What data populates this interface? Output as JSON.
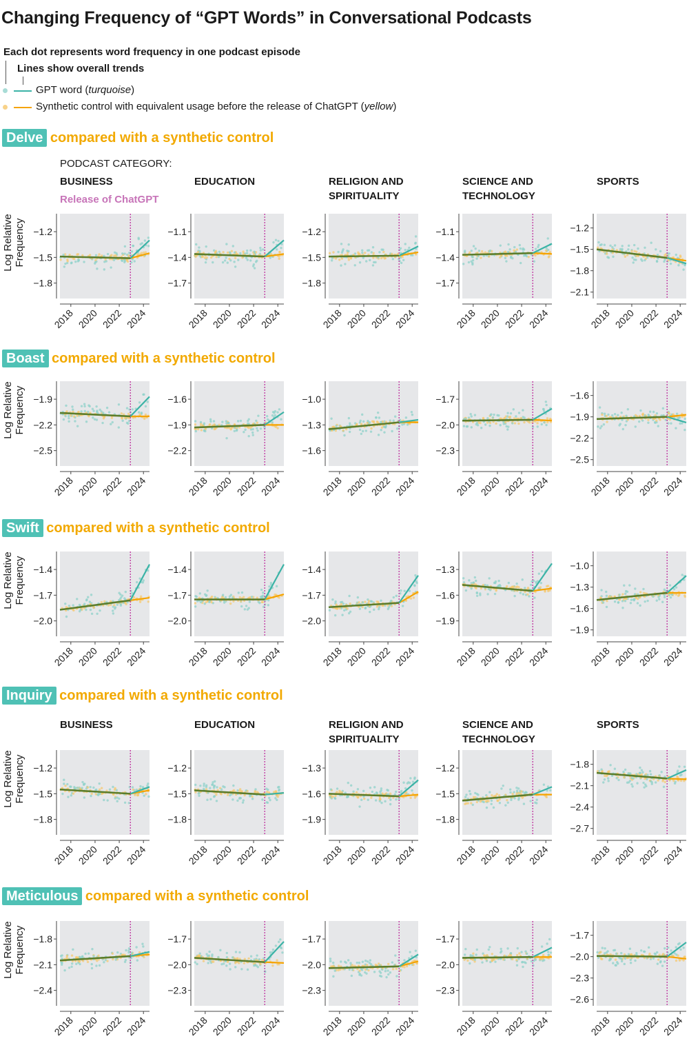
{
  "title": "Changing Frequency of “GPT Words” in Conversational Podcasts",
  "legend": {
    "dots_note": "Each dot represents word frequency in one podcast episode",
    "lines_note": "Lines show overall trends",
    "gpt_label": "GPT word (",
    "gpt_italic": "turquoise",
    "control_label": "Synthetic control with equivalent usage before the release of ChatGPT (",
    "control_italic": "yellow",
    "close_paren": ")"
  },
  "compared_label": "compared with a synthetic control",
  "podcast_category_label": "PODCAST CATEGORY:",
  "release_label": "Release of ChatGPT",
  "colors": {
    "gpt": "#3bb3a6",
    "control": "#f5a300",
    "overlap": "#5c7d2c",
    "release": "#c447a8",
    "panel_bg": "#e6e7e9",
    "badge": "#4fc1b5"
  },
  "chart_data": {
    "type": "scatter",
    "ylabel": "Log Relative Frequency",
    "xlim": [
      2017.1,
      2024.5
    ],
    "xticks": [
      "2018",
      "2020",
      "2022",
      "2024"
    ],
    "release_x": 2022.92,
    "grid": false,
    "categories": [
      "BUSINESS",
      "EDUCATION",
      "RELIGION AND SPIRITUALITY",
      "SCIENCE AND TECHNOLOGY",
      "SPORTS"
    ],
    "trend_fields": [
      "start",
      "at_release",
      "gpt_end",
      "control_end"
    ],
    "words": [
      {
        "word": "Delve",
        "show_categories": true,
        "panels": [
          {
            "yticks": [
              -1.2,
              -1.5,
              -1.8
            ],
            "ylim": [
              -1.98,
              -0.99
            ],
            "trend": [
              -1.49,
              -1.51,
              -1.3,
              -1.45
            ]
          },
          {
            "yticks": [
              -1.1,
              -1.4,
              -1.7
            ],
            "ylim": [
              -1.88,
              -0.89
            ],
            "trend": [
              -1.36,
              -1.39,
              -1.2,
              -1.36
            ]
          },
          {
            "yticks": [
              -1.2,
              -1.5,
              -1.8
            ],
            "ylim": [
              -1.98,
              -0.99
            ],
            "trend": [
              -1.49,
              -1.48,
              -1.37,
              -1.44
            ]
          },
          {
            "yticks": [
              -1.1,
              -1.4,
              -1.7
            ],
            "ylim": [
              -1.88,
              -0.89
            ],
            "trend": [
              -1.37,
              -1.35,
              -1.24,
              -1.36
            ]
          },
          {
            "yticks": [
              -1.2,
              -1.5,
              -1.8,
              -2.1
            ],
            "ylim": [
              -2.19,
              -1.0
            ],
            "trend": [
              -1.5,
              -1.62,
              -1.7,
              -1.66
            ]
          }
        ]
      },
      {
        "word": "Boast",
        "show_categories": false,
        "panels": [
          {
            "yticks": [
              -1.9,
              -2.2,
              -2.5
            ],
            "ylim": [
              -2.68,
              -1.69
            ],
            "trend": [
              -2.06,
              -2.1,
              -1.87,
              -2.1
            ]
          },
          {
            "yticks": [
              -1.6,
              -1.9,
              -2.2
            ],
            "ylim": [
              -2.38,
              -1.39
            ],
            "trend": [
              -1.93,
              -1.9,
              -1.75,
              -1.9
            ]
          },
          {
            "yticks": [
              -1.0,
              -1.3,
              -1.6
            ],
            "ylim": [
              -1.78,
              -0.79
            ],
            "trend": [
              -1.35,
              -1.27,
              -1.24,
              -1.27
            ]
          },
          {
            "yticks": [
              -1.7,
              -2.0,
              -2.3
            ],
            "ylim": [
              -2.48,
              -1.49
            ],
            "trend": [
              -1.95,
              -1.94,
              -1.81,
              -1.95
            ]
          },
          {
            "yticks": [
              -1.6,
              -1.9,
              -2.2,
              -2.5
            ],
            "ylim": [
              -2.59,
              -1.4
            ],
            "trend": [
              -1.93,
              -1.9,
              -1.98,
              -1.87
            ]
          }
        ]
      },
      {
        "word": "Swift",
        "show_categories": false,
        "panels": [
          {
            "yticks": [
              -1.4,
              -1.7,
              -2.0
            ],
            "ylim": [
              -2.18,
              -1.19
            ],
            "trend": [
              -1.87,
              -1.76,
              -1.34,
              -1.73
            ]
          },
          {
            "yticks": [
              -1.4,
              -1.7,
              -2.0
            ],
            "ylim": [
              -2.18,
              -1.19
            ],
            "trend": [
              -1.75,
              -1.75,
              -1.34,
              -1.69
            ]
          },
          {
            "yticks": [
              -1.4,
              -1.7,
              -2.0
            ],
            "ylim": [
              -2.18,
              -1.19
            ],
            "trend": [
              -1.84,
              -1.79,
              -1.47,
              -1.66
            ]
          },
          {
            "yticks": [
              -1.3,
              -1.6,
              -1.9
            ],
            "ylim": [
              -2.08,
              -1.09
            ],
            "trend": [
              -1.48,
              -1.55,
              -1.23,
              -1.52
            ]
          },
          {
            "yticks": [
              -1.0,
              -1.3,
              -1.6,
              -1.9
            ],
            "ylim": [
              -1.99,
              -0.8
            ],
            "trend": [
              -1.48,
              -1.38,
              -1.14,
              -1.38
            ]
          }
        ]
      },
      {
        "word": "Inquiry",
        "show_categories": true,
        "panels": [
          {
            "yticks": [
              -1.2,
              -1.5,
              -1.8
            ],
            "ylim": [
              -1.98,
              -0.99
            ],
            "trend": [
              -1.45,
              -1.5,
              -1.42,
              -1.46
            ]
          },
          {
            "yticks": [
              -1.2,
              -1.5,
              -1.8
            ],
            "ylim": [
              -1.98,
              -0.99
            ],
            "trend": [
              -1.46,
              -1.51,
              -1.49,
              -1.49
            ]
          },
          {
            "yticks": [
              -1.3,
              -1.6,
              -1.9
            ],
            "ylim": [
              -2.08,
              -1.09
            ],
            "trend": [
              -1.6,
              -1.63,
              -1.44,
              -1.61
            ]
          },
          {
            "yticks": [
              -1.2,
              -1.5,
              -1.8
            ],
            "ylim": [
              -1.98,
              -0.99
            ],
            "trend": [
              -1.58,
              -1.51,
              -1.42,
              -1.51
            ]
          },
          {
            "yticks": [
              -1.8,
              -2.1,
              -2.4,
              -2.7
            ],
            "ylim": [
              -2.79,
              -1.6
            ],
            "trend": [
              -1.92,
              -2.0,
              -1.88,
              -2.01
            ]
          }
        ]
      },
      {
        "word": "Meticulous",
        "show_categories": false,
        "panels": [
          {
            "yticks": [
              -1.8,
              -2.1,
              -2.4
            ],
            "ylim": [
              -2.58,
              -1.59
            ],
            "trend": [
              -2.05,
              -2.0,
              -1.95,
              -1.98
            ]
          },
          {
            "yticks": [
              -1.7,
              -2.0,
              -2.3
            ],
            "ylim": [
              -2.48,
              -1.49
            ],
            "trend": [
              -1.92,
              -1.97,
              -1.73,
              -1.98
            ]
          },
          {
            "yticks": [
              -1.7,
              -2.0,
              -2.3
            ],
            "ylim": [
              -2.48,
              -1.49
            ],
            "trend": [
              -2.04,
              -2.02,
              -1.88,
              -1.96
            ]
          },
          {
            "yticks": [
              -1.7,
              -2.0,
              -2.3
            ],
            "ylim": [
              -2.48,
              -1.49
            ],
            "trend": [
              -1.92,
              -1.91,
              -1.8,
              -1.91
            ]
          },
          {
            "yticks": [
              -1.7,
              -2.0,
              -2.3,
              -2.6
            ],
            "ylim": [
              -2.69,
              -1.5
            ],
            "trend": [
              -1.99,
              -2.0,
              -1.8,
              -2.03
            ]
          }
        ]
      }
    ]
  }
}
